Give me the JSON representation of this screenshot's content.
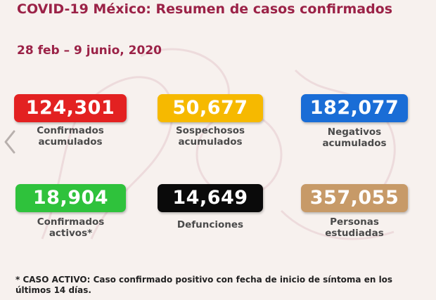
{
  "header": {
    "title": "COVID-19 México: Resumen de casos confirmados",
    "date_range": "28 feb – 9 junio, 2020"
  },
  "stats": [
    {
      "value": "124,301",
      "label_line1": "Confirmados",
      "label_line2": "acumulados",
      "color": "#e32121"
    },
    {
      "value": "50,677",
      "label_line1": "Sospechosos",
      "label_line2": "acumulados",
      "color": "#f6b900"
    },
    {
      "value": "182,077",
      "label_line1": "Negativos",
      "label_line2": "acumulados",
      "color": "#1a6dd6"
    },
    {
      "value": "18,904",
      "label_line1": "Confirmados",
      "label_line2": "activos*",
      "color": "#2fc23c"
    },
    {
      "value": "14,649",
      "label_line1": "Defunciones",
      "label_line2": "",
      "color": "#0a0a0a"
    },
    {
      "value": "357,055",
      "label_line1": "Personas",
      "label_line2": "estudiadas",
      "color": "#c79a68"
    }
  ],
  "footnote": "* CASO ACTIVO: Caso confirmado positivo con fecha de inicio de síntoma en los últimos 14 días.",
  "icons": {
    "nav_prev": "chevron-left-icon"
  }
}
